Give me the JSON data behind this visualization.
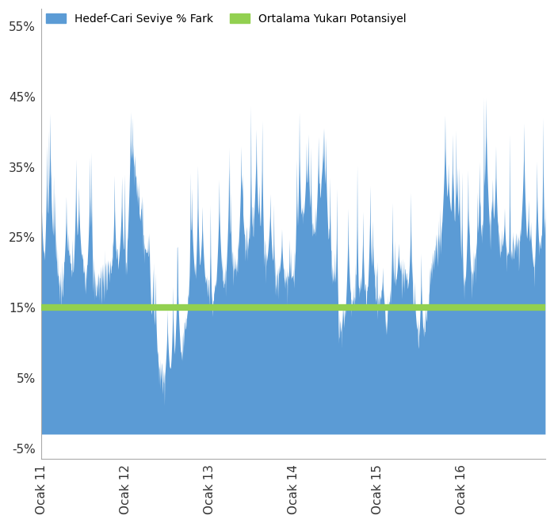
{
  "bar_color": "#5B9BD5",
  "line_color": "#92D050",
  "line_value": 0.15,
  "line_width": 6,
  "ylim": [
    -0.065,
    0.575
  ],
  "yticks": [
    -0.05,
    0.05,
    0.15,
    0.25,
    0.35,
    0.45,
    0.55
  ],
  "ytick_labels": [
    "-5%",
    "5%",
    "15%",
    "25%",
    "35%",
    "45%",
    "55%"
  ],
  "xtick_labels": [
    "Ocak 11",
    "Ocak 12",
    "Ocak 13",
    "Ocak 14",
    "Ocak 15",
    "Ocak 16"
  ],
  "legend_bar_label": "Hedef-Cari Seviye % Fark",
  "legend_line_label": "Ortalama Yukarı Potansiyel",
  "background_color": "#FFFFFF",
  "num_points": 1560,
  "seed": 7
}
